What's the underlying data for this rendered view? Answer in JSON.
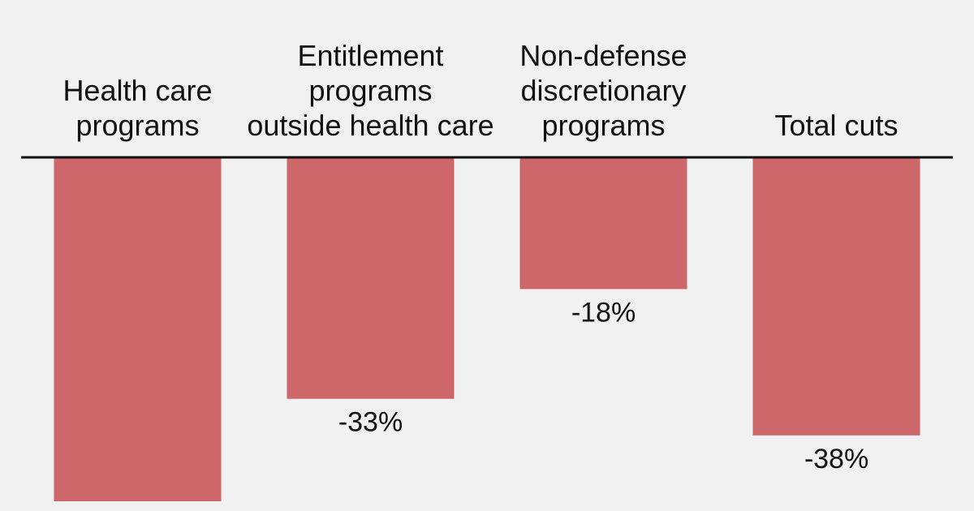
{
  "chart_data": {
    "type": "bar",
    "title": "",
    "xlabel": "",
    "ylabel": "",
    "categories": [
      [
        "Health care",
        "programs"
      ],
      [
        "Entitlement",
        "programs",
        "outside health care"
      ],
      [
        "Non-defense",
        "discretionary",
        "programs"
      ],
      [
        "Total cuts"
      ]
    ],
    "values": [
      -47,
      -33,
      -18,
      -38
    ],
    "value_labels": [
      "",
      "-33%",
      "-18%",
      "-38%"
    ],
    "ylim": [
      -47,
      0
    ],
    "colors": {
      "bar": "#cd676a",
      "baseline": "#111111",
      "text": "#111111",
      "background": "#f1f1f1"
    }
  }
}
